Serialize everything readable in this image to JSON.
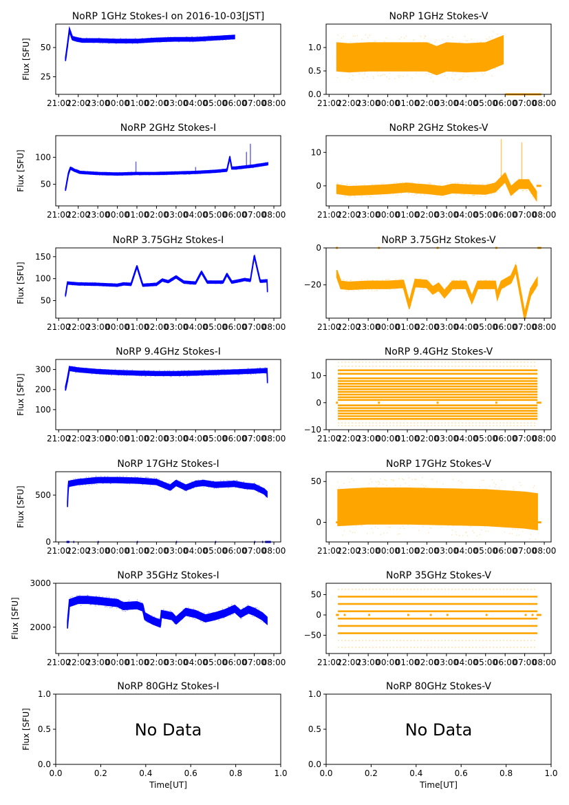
{
  "chart_data": {
    "type": "scatter",
    "figure_title": "NoRP 1GHz Stokes-I on 2016-10-03[JST]",
    "colors": {
      "stokes_i": "#0000ff",
      "stokes_v": "#ffa500"
    },
    "time_ticks": [
      "21:00",
      "22:00",
      "23:00",
      "00:00",
      "01:00",
      "02:00",
      "03:00",
      "04:00",
      "05:00",
      "06:00",
      "07:00",
      "08:00"
    ],
    "time_range_hours": [
      20.85,
      32.35
    ],
    "ylabel": "Flux [SFU]",
    "xlabel": "Time[UT]",
    "panels": [
      {
        "id": "1ghz-i",
        "title": "NoRP 1GHz Stokes-I on 2016-10-03[JST]",
        "kind": "I",
        "ylim": [
          10,
          70
        ],
        "yticks": [
          25,
          50
        ],
        "ylabel": "Flux [SFU]",
        "data_end": 30.0,
        "series": [
          [
            21.35,
            40
          ],
          [
            21.45,
            52
          ],
          [
            21.55,
            65
          ],
          [
            21.7,
            58
          ],
          [
            21.9,
            57
          ],
          [
            22.2,
            56
          ],
          [
            22.6,
            56
          ],
          [
            23.0,
            56
          ],
          [
            0.0,
            55.5
          ],
          [
            1.0,
            55.5
          ],
          [
            2.0,
            56.5
          ],
          [
            3.0,
            57
          ],
          [
            4.0,
            57
          ],
          [
            5.0,
            58
          ],
          [
            6.0,
            59
          ]
        ],
        "spread": 1.5
      },
      {
        "id": "1ghz-v",
        "title": "NoRP 1GHz Stokes-V",
        "kind": "V",
        "ylim": [
          0,
          1.5
        ],
        "yticks": [
          0.0,
          0.5,
          1.0
        ],
        "series": [
          [
            21.4,
            0.8
          ],
          [
            22.0,
            0.78
          ],
          [
            23.0,
            0.8
          ],
          [
            0.0,
            0.8
          ],
          [
            1.0,
            0.8
          ],
          [
            2.0,
            0.8
          ],
          [
            2.5,
            0.72
          ],
          [
            3.0,
            0.8
          ],
          [
            4.0,
            0.78
          ],
          [
            5.0,
            0.8
          ],
          [
            5.9,
            0.95
          ]
        ],
        "spread": 0.3,
        "zero_segments": [
          [
            30.0,
            31.85
          ]
        ]
      },
      {
        "id": "2ghz-i",
        "title": "NoRP 2GHz Stokes-I",
        "kind": "I",
        "ylim": [
          10,
          140
        ],
        "yticks": [
          50,
          100
        ],
        "series": [
          [
            21.35,
            40
          ],
          [
            21.5,
            70
          ],
          [
            21.6,
            80
          ],
          [
            21.8,
            76
          ],
          [
            22.1,
            72
          ],
          [
            23.0,
            70
          ],
          [
            0.0,
            69
          ],
          [
            1.0,
            70
          ],
          [
            2.0,
            70
          ],
          [
            3.0,
            71
          ],
          [
            4.0,
            72
          ],
          [
            5.0,
            74
          ],
          [
            5.6,
            76
          ],
          [
            5.75,
            100
          ],
          [
            5.85,
            80
          ],
          [
            6.0,
            80
          ],
          [
            7.0,
            84
          ],
          [
            7.7,
            88
          ]
        ],
        "spikes": [
          [
            0.95,
            92
          ],
          [
            4.0,
            82
          ],
          [
            6.8,
            125
          ],
          [
            6.6,
            110
          ]
        ],
        "spread": 2
      },
      {
        "id": "2ghz-v",
        "title": "NoRP 2GHz Stokes-V",
        "kind": "V",
        "ylim": [
          -6,
          15
        ],
        "yticks": [
          0,
          10
        ],
        "series": [
          [
            21.4,
            -1
          ],
          [
            22.0,
            -1.5
          ],
          [
            23.0,
            -1.3
          ],
          [
            0.0,
            -1
          ],
          [
            1.0,
            -0.5
          ],
          [
            1.5,
            -0.8
          ],
          [
            2.0,
            -1
          ],
          [
            2.8,
            -1.5
          ],
          [
            3.3,
            -0.8
          ],
          [
            4.0,
            -1
          ],
          [
            5.0,
            -1.2
          ],
          [
            5.5,
            -0.5
          ],
          [
            6.0,
            2.5
          ],
          [
            6.3,
            -1.5
          ],
          [
            6.7,
            0.5
          ],
          [
            7.2,
            0.5
          ],
          [
            7.6,
            -3
          ]
        ],
        "spikes": [
          [
            5.8,
            14
          ],
          [
            6.85,
            13
          ]
        ],
        "spread": 1.3,
        "zero_segments": [
          [
            31.6,
            31.85
          ]
        ]
      },
      {
        "id": "375ghz-i",
        "title": "NoRP 3.75GHz Stokes-I",
        "kind": "I",
        "ylim": [
          10,
          170
        ],
        "yticks": [
          50,
          100,
          150
        ],
        "series": [
          [
            21.35,
            62
          ],
          [
            21.45,
            90
          ],
          [
            22.0,
            88
          ],
          [
            23.0,
            87
          ],
          [
            0.0,
            85
          ],
          [
            0.3,
            88
          ],
          [
            0.7,
            87
          ],
          [
            1.0,
            128
          ],
          [
            1.3,
            85
          ],
          [
            2.0,
            87
          ],
          [
            2.3,
            97
          ],
          [
            2.6,
            93
          ],
          [
            3.0,
            104
          ],
          [
            3.4,
            92
          ],
          [
            4.0,
            90
          ],
          [
            4.3,
            115
          ],
          [
            4.6,
            92
          ],
          [
            5.4,
            92
          ],
          [
            5.6,
            110
          ],
          [
            5.85,
            92
          ],
          [
            6.2,
            95
          ],
          [
            6.5,
            98
          ],
          [
            6.8,
            96
          ],
          [
            7.0,
            152
          ],
          [
            7.3,
            94
          ],
          [
            7.65,
            95
          ],
          [
            7.68,
            60
          ]
        ],
        "spread": 2.5
      },
      {
        "id": "375ghz-v",
        "title": "NoRP 3.75GHz Stokes-V",
        "kind": "V",
        "ylim": [
          -38,
          0
        ],
        "yticks": [
          -20,
          0
        ],
        "series": [
          [
            21.4,
            -14
          ],
          [
            21.6,
            -20
          ],
          [
            22.0,
            -20.5
          ],
          [
            23.0,
            -20
          ],
          [
            0.0,
            -20
          ],
          [
            0.8,
            -19.5
          ],
          [
            1.1,
            -31
          ],
          [
            1.4,
            -19
          ],
          [
            2.0,
            -19.5
          ],
          [
            2.3,
            -23
          ],
          [
            2.6,
            -21
          ],
          [
            2.9,
            -25
          ],
          [
            3.3,
            -20
          ],
          [
            4.0,
            -20
          ],
          [
            4.3,
            -28
          ],
          [
            4.6,
            -20
          ],
          [
            5.5,
            -20
          ],
          [
            5.6,
            -26
          ],
          [
            5.8,
            -20
          ],
          [
            6.3,
            -17
          ],
          [
            6.55,
            -11
          ],
          [
            7.0,
            -37
          ],
          [
            7.3,
            -24
          ],
          [
            7.65,
            -18
          ]
        ],
        "spread": 2,
        "zero_segments": [
          [
            21.35,
            21.45
          ],
          [
            23.5,
            23.6
          ],
          [
            2.5,
            2.6
          ],
          [
            5.5,
            5.6
          ],
          [
            31.65,
            31.85
          ]
        ]
      },
      {
        "id": "94ghz-i",
        "title": "NoRP 9.4GHz Stokes-I",
        "kind": "I",
        "ylim": [
          0,
          350
        ],
        "yticks": [
          100,
          200,
          300
        ],
        "series": [
          [
            21.35,
            205
          ],
          [
            21.45,
            250
          ],
          [
            21.55,
            305
          ],
          [
            22.0,
            298
          ],
          [
            23.0,
            290
          ],
          [
            0.0,
            285
          ],
          [
            1.0,
            282
          ],
          [
            2.0,
            280
          ],
          [
            3.0,
            280
          ],
          [
            4.0,
            282
          ],
          [
            5.0,
            285
          ],
          [
            6.0,
            288
          ],
          [
            7.0,
            292
          ],
          [
            7.65,
            295
          ],
          [
            7.68,
            215
          ]
        ],
        "spread": 10
      },
      {
        "id": "94ghz-v",
        "title": "NoRP 9.4GHz Stokes-V",
        "kind": "V-bands",
        "ylim": [
          -10,
          16
        ],
        "yticks": [
          -10,
          0,
          10
        ],
        "bands": [
          -6,
          -5,
          -4,
          -3,
          -2,
          -1,
          1,
          2,
          3,
          4,
          5,
          6,
          7,
          8,
          9,
          10.7,
          12
        ],
        "sparse_bands": [
          -7.5,
          -8.5,
          13.5,
          15
        ],
        "range": [
          21.45,
          31.65
        ],
        "zero_segments": [
          [
            21.35,
            21.45
          ],
          [
            23.5,
            23.6
          ],
          [
            2.5,
            2.6
          ],
          [
            5.5,
            5.6
          ],
          [
            31.6,
            31.85
          ]
        ]
      },
      {
        "id": "17ghz-i",
        "title": "NoRP 17GHz Stokes-I",
        "kind": "I",
        "ylim": [
          0,
          750
        ],
        "yticks": [
          0,
          500
        ],
        "series": [
          [
            21.45,
            400
          ],
          [
            21.5,
            620
          ],
          [
            22.0,
            640
          ],
          [
            23.0,
            660
          ],
          [
            0.0,
            660
          ],
          [
            1.0,
            655
          ],
          [
            2.0,
            640
          ],
          [
            2.7,
            580
          ],
          [
            3.0,
            630
          ],
          [
            3.5,
            580
          ],
          [
            4.0,
            620
          ],
          [
            4.4,
            630
          ],
          [
            5.0,
            610
          ],
          [
            6.0,
            620
          ],
          [
            6.5,
            600
          ],
          [
            7.0,
            590
          ],
          [
            7.5,
            540
          ],
          [
            7.65,
            510
          ]
        ],
        "spread": 28,
        "zero_segments": [
          [
            21.4,
            21.55
          ],
          [
            21.75,
            21.8
          ],
          [
            23.0,
            23.05
          ],
          [
            1.0,
            1.05
          ],
          [
            3.0,
            3.05
          ],
          [
            5.0,
            5.05
          ],
          [
            7.0,
            7.05
          ],
          [
            7.4,
            7.45
          ],
          [
            7.55,
            7.85
          ]
        ]
      },
      {
        "id": "17ghz-v",
        "title": "NoRP 17GHz Stokes-V",
        "kind": "V",
        "ylim": [
          -24,
          62
        ],
        "yticks": [
          0,
          50
        ],
        "series": [
          [
            21.45,
            18
          ],
          [
            23.0,
            20
          ],
          [
            0.0,
            20
          ],
          [
            1.0,
            20
          ],
          [
            3.0,
            19
          ],
          [
            5.0,
            18
          ],
          [
            7.0,
            15
          ],
          [
            7.65,
            13
          ]
        ],
        "spread": 22,
        "zero_segments": [
          [
            21.35,
            21.45
          ],
          [
            31.65,
            31.85
          ]
        ]
      },
      {
        "id": "35ghz-i",
        "title": "NoRP 35GHz Stokes-I",
        "kind": "I",
        "ylim": [
          1400,
          3000
        ],
        "yticks": [
          2000,
          3000
        ],
        "series": [
          [
            21.45,
            2050
          ],
          [
            21.55,
            2550
          ],
          [
            22.0,
            2620
          ],
          [
            22.5,
            2620
          ],
          [
            23.0,
            2600
          ],
          [
            0.0,
            2550
          ],
          [
            0.3,
            2480
          ],
          [
            1.0,
            2500
          ],
          [
            1.3,
            2450
          ],
          [
            1.4,
            2250
          ],
          [
            1.8,
            2150
          ],
          [
            2.2,
            2080
          ],
          [
            2.25,
            2300
          ],
          [
            2.8,
            2250
          ],
          [
            3.0,
            2150
          ],
          [
            3.5,
            2350
          ],
          [
            4.0,
            2300
          ],
          [
            4.5,
            2200
          ],
          [
            5.0,
            2250
          ],
          [
            5.5,
            2320
          ],
          [
            6.0,
            2420
          ],
          [
            6.3,
            2300
          ],
          [
            6.7,
            2400
          ],
          [
            7.0,
            2350
          ],
          [
            7.4,
            2250
          ],
          [
            7.65,
            2150
          ]
        ],
        "spread": 80
      },
      {
        "id": "35ghz-v",
        "title": "NoRP 35GHz Stokes-V",
        "kind": "V-bands",
        "ylim": [
          -95,
          78
        ],
        "yticks": [
          -50,
          0,
          50
        ],
        "bands": [
          -45,
          -27,
          -9,
          9,
          27,
          45
        ],
        "sparse_bands": [
          -63,
          63,
          -80
        ],
        "range": [
          21.45,
          31.65
        ],
        "zero_segments": [
          [
            21.35,
            21.5
          ],
          [
            21.75,
            21.85
          ],
          [
            23.0,
            23.1
          ],
          [
            1.0,
            1.1
          ],
          [
            2.15,
            2.25
          ],
          [
            3.0,
            3.1
          ],
          [
            5.0,
            5.1
          ],
          [
            7.0,
            7.1
          ],
          [
            7.35,
            7.45
          ],
          [
            7.6,
            7.85
          ]
        ]
      },
      {
        "id": "80ghz-i",
        "title": "NoRP 80GHz Stokes-I",
        "kind": "nodata",
        "message": "No Data",
        "ylim": [
          0,
          1
        ],
        "yticks": [
          "0.0",
          "0.5",
          "1.0"
        ],
        "xticks": [
          "0.0",
          "0.2",
          "0.4",
          "0.6",
          "0.8",
          "1.0"
        ],
        "xlabel": "Time[UT]",
        "ylabel": "Flux [SFU]"
      },
      {
        "id": "80ghz-v",
        "title": "NoRP 80GHz Stokes-V",
        "kind": "nodata",
        "message": "No Data",
        "ylim": [
          0,
          1
        ],
        "yticks": [
          "0.0",
          "0.5",
          "1.0"
        ],
        "xticks": [
          "0.0",
          "0.2",
          "0.4",
          "0.6",
          "0.8",
          "1.0"
        ],
        "xlabel": "Time[UT]"
      }
    ]
  }
}
